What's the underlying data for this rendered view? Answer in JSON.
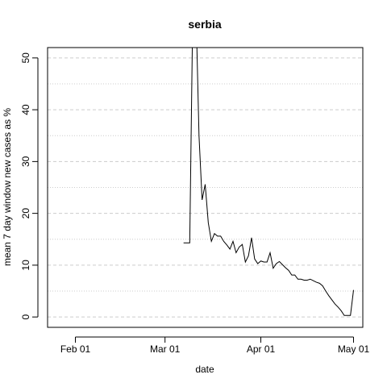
{
  "chart_data": {
    "type": "line",
    "title": "serbia",
    "xlabel": "date",
    "ylabel": "mean  7  day window new cases as %",
    "x_ticks": [
      {
        "date": "2020-02-01",
        "label": "Feb 01"
      },
      {
        "date": "2020-03-01",
        "label": "Mar 01"
      },
      {
        "date": "2020-04-01",
        "label": "Apr 01"
      },
      {
        "date": "2020-05-01",
        "label": "May 01"
      }
    ],
    "y_ticks": [
      0,
      10,
      20,
      30,
      40,
      50
    ],
    "xlim": [
      "2020-01-23",
      "2020-05-04"
    ],
    "ylim": [
      -2,
      52
    ],
    "grid": {
      "major": "dashed",
      "minor": "dotted"
    },
    "line_color": "#000000",
    "series": [
      {
        "points": [
          [
            "2020-03-07",
            14.3
          ],
          [
            "2020-03-08",
            14.3
          ],
          [
            "2020-03-09",
            14.3
          ],
          [
            "2020-03-10",
            60.0
          ],
          [
            "2020-03-11",
            60.0
          ],
          [
            "2020-03-12",
            35.0
          ],
          [
            "2020-03-13",
            22.6
          ],
          [
            "2020-03-14",
            25.6
          ],
          [
            "2020-03-15",
            18.2
          ],
          [
            "2020-03-16",
            14.6
          ],
          [
            "2020-03-17",
            16.1
          ],
          [
            "2020-03-18",
            15.6
          ],
          [
            "2020-03-19",
            15.6
          ],
          [
            "2020-03-20",
            14.6
          ],
          [
            "2020-03-21",
            13.9
          ],
          [
            "2020-03-22",
            13.1
          ],
          [
            "2020-03-23",
            14.6
          ],
          [
            "2020-03-24",
            12.4
          ],
          [
            "2020-03-25",
            13.5
          ],
          [
            "2020-03-26",
            14.0
          ],
          [
            "2020-03-27",
            10.6
          ],
          [
            "2020-03-28",
            11.8
          ],
          [
            "2020-03-29",
            15.3
          ],
          [
            "2020-03-30",
            11.2
          ],
          [
            "2020-03-31",
            10.3
          ],
          [
            "2020-04-01",
            10.8
          ],
          [
            "2020-04-02",
            10.6
          ],
          [
            "2020-04-03",
            10.6
          ],
          [
            "2020-04-04",
            12.4
          ],
          [
            "2020-04-05",
            9.4
          ],
          [
            "2020-04-06",
            10.3
          ],
          [
            "2020-04-07",
            10.7
          ],
          [
            "2020-04-08",
            10.1
          ],
          [
            "2020-04-09",
            9.5
          ],
          [
            "2020-04-10",
            9.0
          ],
          [
            "2020-04-11",
            8.1
          ],
          [
            "2020-04-12",
            8.1
          ],
          [
            "2020-04-13",
            7.3
          ],
          [
            "2020-04-14",
            7.3
          ],
          [
            "2020-04-15",
            7.1
          ],
          [
            "2020-04-16",
            7.1
          ],
          [
            "2020-04-17",
            7.3
          ],
          [
            "2020-04-18",
            7.0
          ],
          [
            "2020-04-19",
            6.7
          ],
          [
            "2020-04-20",
            6.5
          ],
          [
            "2020-04-21",
            6.0
          ],
          [
            "2020-04-22",
            5.0
          ],
          [
            "2020-04-23",
            4.1
          ],
          [
            "2020-04-24",
            3.3
          ],
          [
            "2020-04-25",
            2.5
          ],
          [
            "2020-04-26",
            1.9
          ],
          [
            "2020-04-27",
            1.2
          ],
          [
            "2020-04-28",
            0.3
          ],
          [
            "2020-04-29",
            0.3
          ],
          [
            "2020-04-30",
            0.3
          ],
          [
            "2020-05-01",
            5.2
          ]
        ]
      }
    ]
  }
}
